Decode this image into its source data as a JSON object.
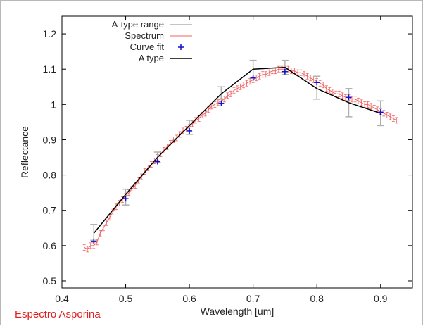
{
  "caption": "Espectro Asporina",
  "chart_data": {
    "type": "line",
    "title": "",
    "xlabel": "Wavelength [um]",
    "ylabel": "Reflectance",
    "xlim": [
      0.4,
      0.95
    ],
    "ylim": [
      0.48,
      1.25
    ],
    "x_ticks": [
      "0.4",
      "0.5",
      "0.6",
      "0.7",
      "0.8",
      "0.9"
    ],
    "x_tick_values": [
      0.4,
      0.5,
      0.6,
      0.7,
      0.8,
      0.9
    ],
    "y_ticks": [
      "0.5",
      "0.6",
      "0.7",
      "0.8",
      "0.9",
      "1",
      "1.1",
      "1.2"
    ],
    "y_tick_values": [
      0.5,
      0.6,
      0.7,
      0.8,
      0.9,
      1.0,
      1.1,
      1.2
    ],
    "grid": false,
    "legend_position": "top-left",
    "colors": {
      "range": "#b0b0b0",
      "spectrum": "#f06060",
      "fit": "#1010d0",
      "atype": "#000000"
    },
    "series": [
      {
        "name": "A-type range",
        "kind": "errorbars",
        "x": [
          0.45,
          0.5,
          0.55,
          0.6,
          0.65,
          0.7,
          0.75,
          0.8,
          0.85,
          0.9
        ],
        "low": [
          0.615,
          0.715,
          0.835,
          0.915,
          1.015,
          1.075,
          1.085,
          1.015,
          0.965,
          0.94
        ],
        "high": [
          0.66,
          0.76,
          0.865,
          0.955,
          1.05,
          1.125,
          1.125,
          1.08,
          1.045,
          1.01
        ]
      },
      {
        "name": "Spectrum",
        "kind": "errorline",
        "x": [
          0.435,
          0.44,
          0.445,
          0.45,
          0.455,
          0.46,
          0.465,
          0.47,
          0.475,
          0.48,
          0.485,
          0.49,
          0.495,
          0.5,
          0.505,
          0.51,
          0.515,
          0.52,
          0.525,
          0.53,
          0.535,
          0.54,
          0.545,
          0.55,
          0.555,
          0.56,
          0.565,
          0.57,
          0.575,
          0.58,
          0.585,
          0.59,
          0.595,
          0.6,
          0.605,
          0.61,
          0.615,
          0.62,
          0.625,
          0.63,
          0.635,
          0.64,
          0.645,
          0.65,
          0.655,
          0.66,
          0.665,
          0.67,
          0.675,
          0.68,
          0.685,
          0.69,
          0.695,
          0.7,
          0.705,
          0.71,
          0.715,
          0.72,
          0.725,
          0.73,
          0.735,
          0.74,
          0.745,
          0.75,
          0.755,
          0.76,
          0.765,
          0.77,
          0.775,
          0.78,
          0.785,
          0.79,
          0.795,
          0.8,
          0.805,
          0.81,
          0.815,
          0.82,
          0.825,
          0.83,
          0.835,
          0.84,
          0.845,
          0.85,
          0.855,
          0.86,
          0.865,
          0.87,
          0.875,
          0.88,
          0.885,
          0.89,
          0.895,
          0.9,
          0.905,
          0.91,
          0.915,
          0.92,
          0.925
        ],
        "y": [
          0.595,
          0.59,
          0.6,
          0.6,
          0.61,
          0.635,
          0.65,
          0.665,
          0.68,
          0.695,
          0.71,
          0.72,
          0.73,
          0.74,
          0.75,
          0.76,
          0.77,
          0.785,
          0.795,
          0.81,
          0.82,
          0.83,
          0.84,
          0.85,
          0.86,
          0.87,
          0.88,
          0.89,
          0.9,
          0.905,
          0.915,
          0.925,
          0.93,
          0.935,
          0.945,
          0.955,
          0.96,
          0.97,
          0.975,
          0.985,
          0.995,
          1.0,
          1.005,
          1.01,
          1.015,
          1.025,
          1.03,
          1.04,
          1.045,
          1.05,
          1.055,
          1.06,
          1.065,
          1.07,
          1.075,
          1.08,
          1.085,
          1.085,
          1.09,
          1.095,
          1.095,
          1.1,
          1.1,
          1.1,
          1.1,
          1.095,
          1.095,
          1.09,
          1.09,
          1.085,
          1.08,
          1.075,
          1.07,
          1.065,
          1.06,
          1.055,
          1.045,
          1.04,
          1.035,
          1.03,
          1.03,
          1.025,
          1.02,
          1.02,
          1.015,
          1.015,
          1.01,
          1.005,
          1.0,
          1.0,
          0.995,
          0.99,
          0.985,
          0.98,
          0.975,
          0.97,
          0.965,
          0.96,
          0.955
        ],
        "err": 0.008
      },
      {
        "name": "Curve fit",
        "kind": "points",
        "x": [
          0.45,
          0.5,
          0.55,
          0.6,
          0.65,
          0.7,
          0.75,
          0.8,
          0.85,
          0.9
        ],
        "y": [
          0.612,
          0.733,
          0.838,
          0.925,
          1.003,
          1.075,
          1.093,
          1.062,
          1.02,
          0.978
        ]
      },
      {
        "name": "A type",
        "kind": "line",
        "x": [
          0.45,
          0.5,
          0.55,
          0.6,
          0.65,
          0.7,
          0.75,
          0.8,
          0.85,
          0.9
        ],
        "y": [
          0.635,
          0.745,
          0.85,
          0.94,
          1.03,
          1.1,
          1.105,
          1.045,
          1.005,
          0.975
        ]
      }
    ]
  }
}
